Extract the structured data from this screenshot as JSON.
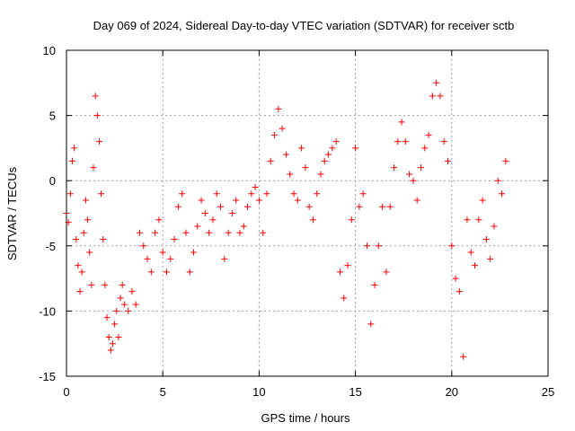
{
  "chart_data": {
    "type": "scatter",
    "title": "Day 069 of 2024, Sidereal Day-to-day VTEC variation (SDTVAR) for receiver sctb",
    "xlabel": "GPS time / hours",
    "ylabel": "SDTVAR / TECUs",
    "xlim": [
      0,
      25
    ],
    "ylim": [
      -15,
      10
    ],
    "xticks": [
      0,
      5,
      10,
      15,
      20,
      25
    ],
    "yticks": [
      -15,
      -10,
      -5,
      0,
      5,
      10
    ],
    "xtick_labels": [
      "0",
      "5",
      "10",
      "15",
      "20",
      "25"
    ],
    "ytick_labels": [
      "-15",
      "-10",
      "-5",
      "0",
      "5",
      "10"
    ],
    "grid": true,
    "marker": "+",
    "series": [
      {
        "name": "SDTVAR",
        "color": "#ff0000",
        "x": [
          0.0,
          0.1,
          0.2,
          0.3,
          0.4,
          0.5,
          0.6,
          0.7,
          0.8,
          0.9,
          1.0,
          1.1,
          1.2,
          1.3,
          1.4,
          1.5,
          1.6,
          1.7,
          1.8,
          1.9,
          2.0,
          2.1,
          2.2,
          2.3,
          2.4,
          2.5,
          2.6,
          2.7,
          2.8,
          2.9,
          3.0,
          3.2,
          3.4,
          3.6,
          3.8,
          4.0,
          4.2,
          4.4,
          4.6,
          4.8,
          5.0,
          5.2,
          5.4,
          5.6,
          5.8,
          6.0,
          6.2,
          6.4,
          6.6,
          6.8,
          7.0,
          7.2,
          7.4,
          7.6,
          7.8,
          8.0,
          8.2,
          8.4,
          8.6,
          8.8,
          9.0,
          9.2,
          9.4,
          9.6,
          9.8,
          10.0,
          10.2,
          10.4,
          10.6,
          10.8,
          11.0,
          11.2,
          11.4,
          11.6,
          11.8,
          12.0,
          12.2,
          12.4,
          12.6,
          12.8,
          13.0,
          13.2,
          13.4,
          13.6,
          13.8,
          14.0,
          14.2,
          14.4,
          14.6,
          14.8,
          15.0,
          15.2,
          15.4,
          15.6,
          15.8,
          16.0,
          16.2,
          16.4,
          16.6,
          16.8,
          17.0,
          17.2,
          17.4,
          17.6,
          17.8,
          18.0,
          18.2,
          18.4,
          18.6,
          18.8,
          19.0,
          19.2,
          19.4,
          19.6,
          19.8,
          20.0,
          20.2,
          20.4,
          20.6,
          20.8,
          21.0,
          21.2,
          21.4,
          21.6,
          21.8,
          22.0,
          22.2,
          22.4,
          22.6,
          22.8
        ],
        "y": [
          -2.5,
          -3.2,
          -1.0,
          1.5,
          2.5,
          -4.5,
          -6.5,
          -8.5,
          -7.0,
          -4.0,
          -1.5,
          -3.0,
          -5.5,
          -8.0,
          1.0,
          6.5,
          5.0,
          3.0,
          -1.0,
          -4.5,
          -8.0,
          -10.5,
          -12.0,
          -13.0,
          -12.5,
          -11.0,
          -10.0,
          -12.0,
          -9.0,
          -8.0,
          -9.5,
          -10.0,
          -8.5,
          -9.5,
          -4.0,
          -5.0,
          -6.0,
          -7.0,
          -4.0,
          -3.0,
          -5.5,
          -7.0,
          -6.0,
          -4.5,
          -2.0,
          -1.0,
          -4.0,
          -7.0,
          -5.5,
          -3.5,
          -1.5,
          -2.5,
          -4.0,
          -3.0,
          -1.0,
          -2.0,
          -6.0,
          -4.0,
          -2.5,
          -1.5,
          -4.0,
          -3.5,
          -2.0,
          -1.0,
          -0.5,
          -1.5,
          -4.0,
          -1.0,
          1.5,
          3.5,
          5.5,
          4.0,
          2.0,
          0.5,
          -1.0,
          -1.5,
          2.5,
          1.0,
          -2.0,
          -3.0,
          -1.0,
          0.5,
          1.5,
          2.0,
          2.5,
          3.0,
          -7.0,
          -9.0,
          -6.5,
          -3.0,
          2.5,
          -2.0,
          -1.0,
          -5.0,
          -11.0,
          -8.0,
          -5.0,
          -2.0,
          -7.0,
          -2.0,
          1.0,
          3.0,
          4.5,
          3.0,
          0.5,
          0.0,
          -1.5,
          1.0,
          2.5,
          3.5,
          6.5,
          7.5,
          6.5,
          3.0,
          1.5,
          -5.0,
          -7.5,
          -8.5,
          -13.5,
          -3.0,
          -5.5,
          -6.5,
          -3.0,
          -1.5,
          -4.5,
          -6.0,
          -3.5,
          0.0,
          -1.0,
          1.5
        ]
      }
    ]
  }
}
